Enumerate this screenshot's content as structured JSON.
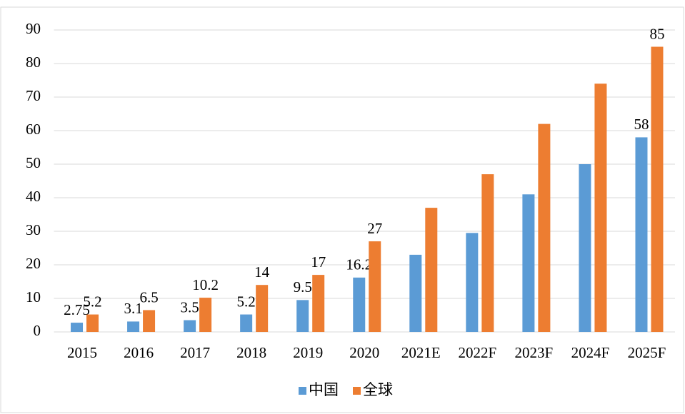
{
  "chart_data": {
    "type": "bar",
    "categories": [
      "2015",
      "2016",
      "2017",
      "2018",
      "2019",
      "2020",
      "2021E",
      "2022F",
      "2023F",
      "2024F",
      "2025F"
    ],
    "series": [
      {
        "name": "中国",
        "color": "#5b9bd5",
        "values": [
          2.75,
          3.1,
          3.5,
          5.2,
          9.5,
          16.2,
          23,
          29.5,
          41,
          50,
          58
        ],
        "value_labels": [
          "2.75",
          "3.1",
          "3.5",
          "5.2",
          "9.5",
          "16.2",
          null,
          null,
          null,
          null,
          "58"
        ]
      },
      {
        "name": "全球",
        "color": "#ed7d31",
        "values": [
          5.2,
          6.5,
          10.2,
          14,
          17,
          27,
          37,
          47,
          62,
          74,
          85
        ],
        "value_labels": [
          "5.2",
          "6.5",
          "10.2",
          "14",
          "17",
          "27",
          null,
          null,
          null,
          null,
          "85"
        ]
      }
    ],
    "ylim": [
      0,
      90
    ],
    "yticks": [
      0,
      10,
      20,
      30,
      40,
      50,
      60,
      70,
      80,
      90
    ],
    "grid": true,
    "legend": "bottom"
  }
}
